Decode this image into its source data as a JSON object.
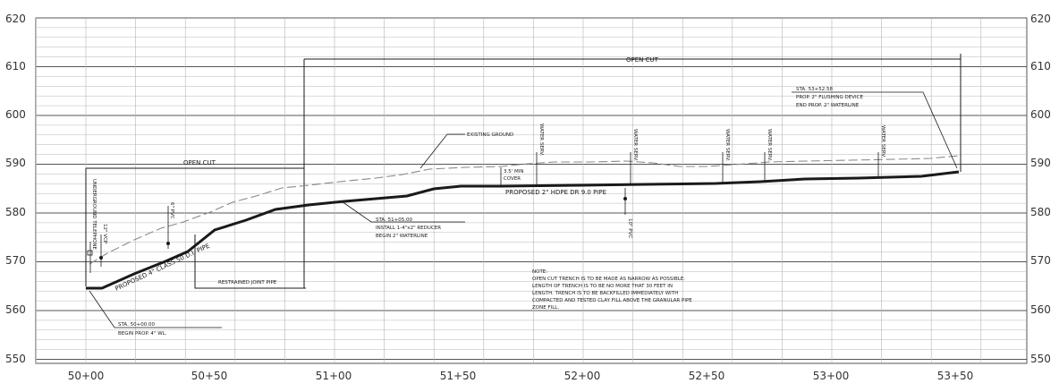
{
  "profile": {
    "elevations": [
      "620",
      "610",
      "600",
      "590",
      "580",
      "570",
      "560",
      "550"
    ],
    "stations": [
      "50+00",
      "50+50",
      "51+00",
      "51+50",
      "52+00",
      "52+50",
      "53+00",
      "53+50"
    ]
  },
  "labels": {
    "open_cut_left": "OPEN CUT",
    "open_cut_right": "OPEN CUT",
    "existing_ground": "EXISTING GROUND",
    "cover_line1": "3.5' MIN",
    "cover_line2": "COVER",
    "proposed_2in": "PROPOSED 2\" HDPE DR 9.0 PIPE",
    "proposed_4in": "PROPOSED 4\" CLASS 50 D.I. PIPE",
    "restrained": "RESTRAINED JOINT PIPE",
    "sta_end_1": "STA. 53+52.58",
    "sta_end_2": "PROP. 2\" FLUSHING DEVICE",
    "sta_end_3": "END PROP. 2\" WATERLINE",
    "sta_mid_1": "STA. 51+05.00",
    "sta_mid_2": "INSTALL 1-4\"x2\" REDUCER",
    "sta_mid_3": "BEGIN 2\" WATERLINE",
    "sta_begin_1": "STA. 50+00.00",
    "sta_begin_2": "BEGIN PROP. 4\" WL.",
    "underground_telephone": "UNDERGROUND TELEPHONE",
    "vcp_12": "12\" VCP",
    "pvc_6": "6\" PVC",
    "pvc_10": "10\" PVC",
    "water_serv": "WATER SERV."
  },
  "note": {
    "lines": [
      "NOTE:",
      "OPEN CUT TRENCH IS TO BE MADE AS NARROW AS POSSIBLE.",
      "LENGTH OF TRENCH IS TO BE NO MORE THAT 30 FEET IN",
      "LENGTH.  TRENCH IS TO BE BACKFILLED IMMEDIATELY WITH",
      "COMPACTED AND TESTED CLAY FILL ABOVE THE GRANULAR PIPE",
      "ZONE FILL."
    ]
  },
  "colors": {
    "ink": "#1a1a1a",
    "grid_major": "#555555",
    "grid_minor": "#b5b5b5",
    "dashed": "#8a8a8a"
  }
}
